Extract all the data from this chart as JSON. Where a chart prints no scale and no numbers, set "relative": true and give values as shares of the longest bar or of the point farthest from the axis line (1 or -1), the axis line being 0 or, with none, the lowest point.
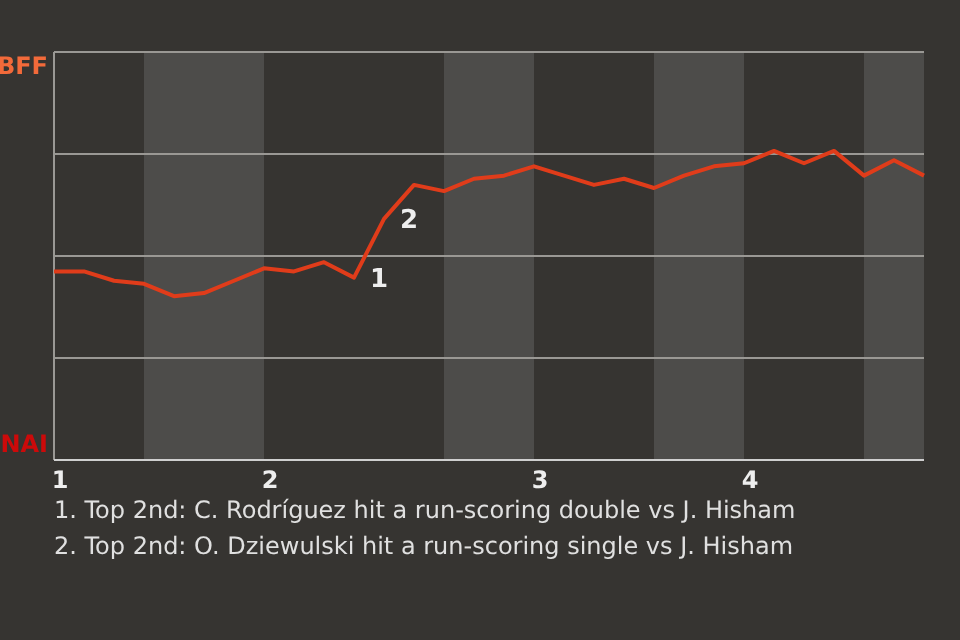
{
  "chart_data": {
    "type": "line",
    "relative": true,
    "categories": [
      "1",
      null,
      null,
      null,
      null,
      null,
      null,
      "2",
      null,
      null,
      null,
      null,
      null,
      null,
      null,
      null,
      "3",
      null,
      null,
      null,
      null,
      null,
      null,
      "4",
      null,
      null,
      null,
      null,
      null,
      null
    ],
    "marker": "none",
    "line_style": "solid",
    "ref_lines": [
      {
        "axis": "y",
        "value": 0.33,
        "color": "#9a9894"
      },
      {
        "axis": "y",
        "value": 0.66,
        "color": "#9a9894"
      },
      {
        "axis": "y",
        "value": 0.99,
        "color": "#9a9894"
      }
    ],
    "series": [
      {
        "color": "#e03c1a",
        "values": [
          0.61,
          0.61,
          0.58,
          0.57,
          0.53,
          0.54,
          0.58,
          0.62,
          0.61,
          0.64,
          0.59,
          0.78,
          0.89,
          0.87,
          0.91,
          0.92,
          0.95,
          0.92,
          0.89,
          0.91,
          0.88,
          0.92,
          0.95,
          0.96,
          1,
          0.96,
          1,
          0.92,
          0.97,
          0.92
        ]
      }
    ],
    "annotations": [
      "1",
      "2",
      "BFF",
      "NAI",
      "1. Top 2nd: C. Rodríguez hit a run-scoring double vs J. Hisham",
      "2. Top 2nd: O. Dziewulski hit a run-scoring single vs J. Hisham"
    ]
  }
}
